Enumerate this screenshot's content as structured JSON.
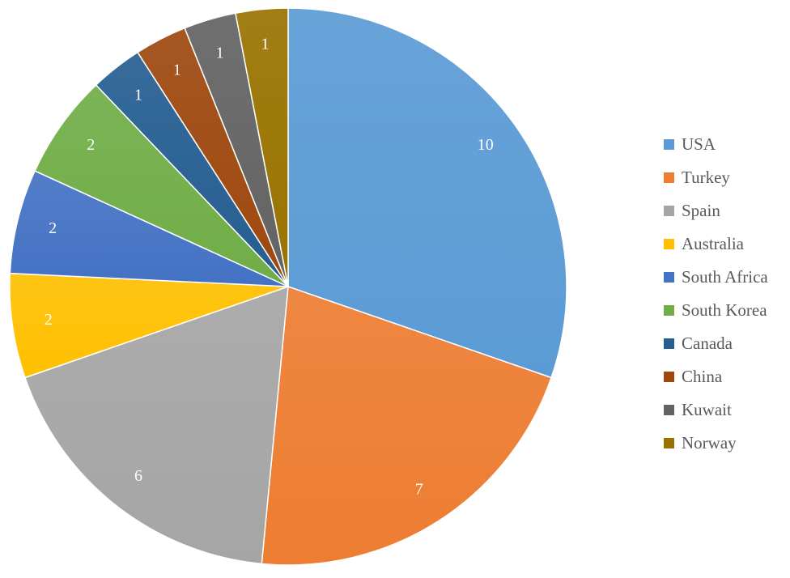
{
  "chart_data": {
    "type": "pie",
    "categories": [
      "USA",
      "Turkey",
      "Spain",
      "Australia",
      "South Africa",
      "South Korea",
      "Canada",
      "China",
      "Kuwait",
      "Norway"
    ],
    "values": [
      10,
      7,
      6,
      2,
      2,
      2,
      1,
      1,
      1,
      1
    ],
    "colors": [
      "#5b9bd5",
      "#ed7d31",
      "#a5a5a5",
      "#ffc000",
      "#4472c4",
      "#70ad47",
      "#255e91",
      "#9e480e",
      "#636363",
      "#997300"
    ],
    "data_labels": [
      "10",
      "7",
      "6",
      "2",
      "2",
      "2",
      "1",
      "1",
      "1",
      "1"
    ],
    "start_angle": "12 o'clock",
    "direction": "clockwise",
    "legend_position": "right"
  }
}
